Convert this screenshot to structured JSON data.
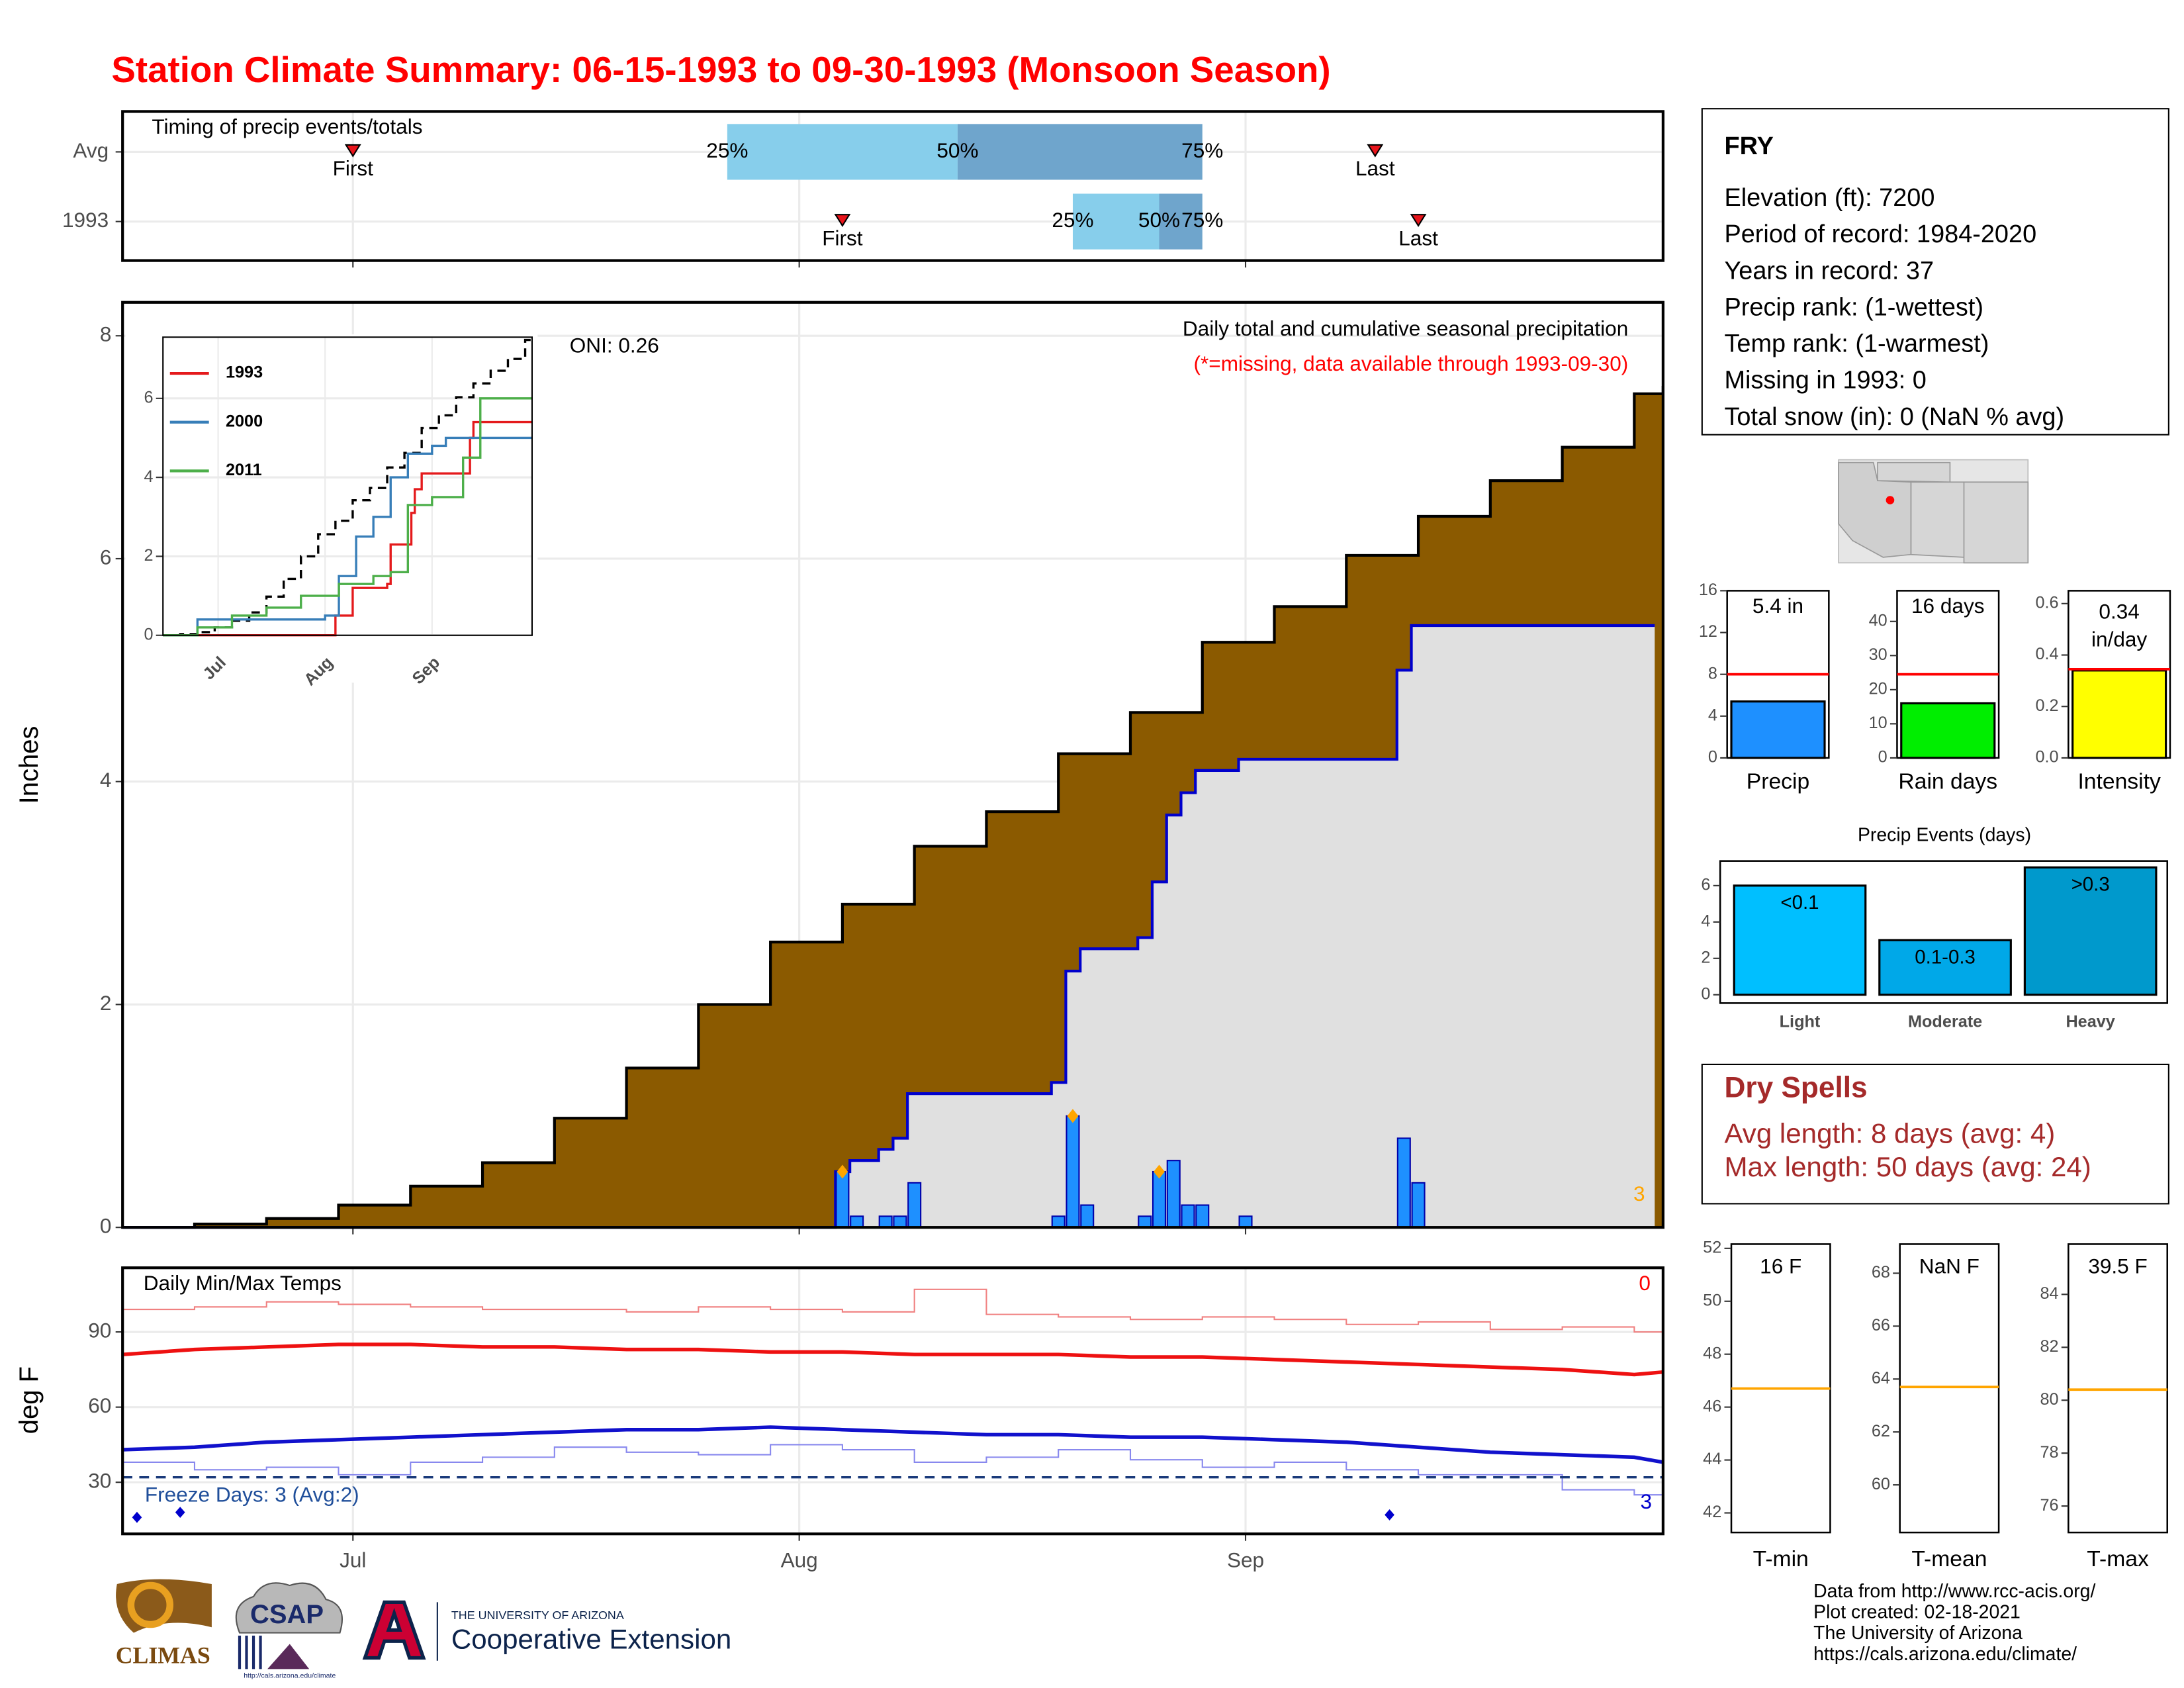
{
  "title": "Station Climate Summary: 06-15-1993 to 09-30-1993 (Monsoon Season)",
  "chart_data": [
    {
      "type": "timing",
      "title": "Timing of precip events/totals",
      "rows": [
        {
          "name": "Avg",
          "first": "1993-07-01",
          "p25": "1993-07-27",
          "p50": "1993-08-12",
          "p75": "1993-08-29",
          "last": "1993-09-10"
        },
        {
          "name": "1993",
          "first": "1993-08-04",
          "p25": "1993-08-20",
          "p50": "1993-08-26",
          "p75": "1993-08-29",
          "last": "1993-09-13"
        }
      ],
      "labels": {
        "first": "First",
        "last": "Last",
        "p25": "25%",
        "p50": "50%",
        "p75": "75%"
      },
      "colors": {
        "low": "#87ceeb",
        "high": "#6fa5cc",
        "marker": "#e8141b"
      }
    },
    {
      "type": "precip",
      "title": "Daily total and cumulative seasonal precipitation",
      "subtitle": "(*=missing, data available through 1993-09-30)",
      "annotation": "ONI: 0.26",
      "count_label": "3",
      "ylabel": "Inches",
      "ylim": [
        0,
        8.3
      ],
      "yticks": [
        0,
        2,
        4,
        6,
        8
      ],
      "average": {
        "color": "#8b5a00",
        "x": [
          "1993-06-15",
          "1993-06-20",
          "1993-06-25",
          "1993-06-30",
          "1993-07-05",
          "1993-07-10",
          "1993-07-15",
          "1993-07-20",
          "1993-07-25",
          "1993-07-30",
          "1993-08-04",
          "1993-08-09",
          "1993-08-14",
          "1993-08-19",
          "1993-08-24",
          "1993-08-29",
          "1993-09-03",
          "1993-09-08",
          "1993-09-13",
          "1993-09-18",
          "1993-09-23",
          "1993-09-28",
          "1993-09-30"
        ],
        "values": [
          0,
          0.03,
          0.08,
          0.2,
          0.37,
          0.58,
          0.98,
          1.43,
          2.0,
          2.56,
          2.9,
          3.42,
          3.73,
          4.25,
          4.62,
          5.25,
          5.57,
          6.03,
          6.38,
          6.7,
          7.0,
          7.48,
          7.55
        ]
      },
      "daily": {
        "color": "#1e90ff",
        "cumulative_color": "#0000cc",
        "highlight_color": "#ffa500",
        "x": [
          "1993-08-04",
          "1993-08-05",
          "1993-08-07",
          "1993-08-08",
          "1993-08-09",
          "1993-08-19",
          "1993-08-20",
          "1993-08-21",
          "1993-08-25",
          "1993-08-26",
          "1993-08-27",
          "1993-08-28",
          "1993-08-29",
          "1993-09-01",
          "1993-09-12",
          "1993-09-13"
        ],
        "values": [
          0.5,
          0.1,
          0.1,
          0.1,
          0.4,
          0.1,
          1.0,
          0.2,
          0.1,
          0.5,
          0.6,
          0.2,
          0.2,
          0.1,
          0.8,
          0.4
        ],
        "cumulative": [
          0.5,
          0.6,
          0.7,
          0.8,
          1.2,
          1.3,
          2.3,
          2.5,
          2.6,
          3.1,
          3.7,
          3.9,
          4.1,
          4.2,
          5.0,
          5.4
        ],
        "highlight": [
          0,
          6,
          9
        ]
      }
    },
    {
      "type": "inset",
      "ylim": [
        0,
        7.55
      ],
      "yticks": [
        0,
        2,
        4,
        6
      ],
      "xticks": [
        {
          "value": "1993-07-01",
          "label": "Jul"
        },
        {
          "value": "1993-08-01",
          "label": "Aug"
        },
        {
          "value": "1993-09-01",
          "label": "Sep"
        }
      ],
      "series": [
        {
          "name": "1993",
          "color": "#e41a1c",
          "x": [
            "1993-06-15",
            "1993-08-04",
            "1993-08-09",
            "1993-08-19",
            "1993-08-20",
            "1993-08-26",
            "1993-08-27",
            "1993-08-29",
            "1993-09-12",
            "1993-09-13",
            "1993-09-30"
          ],
          "values": [
            0,
            0.5,
            1.2,
            1.3,
            2.3,
            3.1,
            3.7,
            4.1,
            5.0,
            5.4,
            5.4
          ]
        },
        {
          "name": "2000",
          "color": "#377eb8",
          "x": [
            "1993-06-15",
            "1993-06-25",
            "1993-07-20",
            "1993-08-01",
            "1993-08-05",
            "1993-08-10",
            "1993-08-15",
            "1993-08-20",
            "1993-08-25",
            "1993-09-01",
            "1993-09-05",
            "1993-09-30"
          ],
          "values": [
            0,
            0.4,
            0.4,
            0.5,
            1.5,
            2.5,
            3.0,
            4.0,
            4.6,
            4.8,
            5.0,
            5.0
          ]
        },
        {
          "name": "2011",
          "color": "#4daf4a",
          "x": [
            "1993-06-15",
            "1993-06-25",
            "1993-07-05",
            "1993-07-15",
            "1993-07-25",
            "1993-08-05",
            "1993-08-15",
            "1993-08-20",
            "1993-08-25",
            "1993-09-01",
            "1993-09-10",
            "1993-09-15",
            "1993-09-30"
          ],
          "values": [
            0,
            0.2,
            0.5,
            0.7,
            1.0,
            1.3,
            1.5,
            1.6,
            3.3,
            3.5,
            4.5,
            6.0,
            6.0
          ]
        }
      ]
    },
    {
      "type": "temps",
      "title": "Daily Min/Max Temps",
      "ylabel": "deg F",
      "ylim": [
        9.4,
        115.6
      ],
      "yticks": [
        30,
        60,
        90
      ],
      "xlim": [
        "1993-06-15",
        "1993-09-30"
      ],
      "xticks": [
        {
          "value": "1993-07-01",
          "label": "Jul"
        },
        {
          "value": "1993-08-01",
          "label": "Aug"
        },
        {
          "value": "1993-09-01",
          "label": "Sep"
        }
      ],
      "x": [
        "1993-06-15",
        "1993-06-20",
        "1993-06-25",
        "1993-06-30",
        "1993-07-05",
        "1993-07-10",
        "1993-07-15",
        "1993-07-20",
        "1993-07-25",
        "1993-07-30",
        "1993-08-04",
        "1993-08-09",
        "1993-08-14",
        "1993-08-19",
        "1993-08-24",
        "1993-08-29",
        "1993-09-03",
        "1993-09-08",
        "1993-09-13",
        "1993-09-18",
        "1993-09-23",
        "1993-09-28",
        "1993-09-30"
      ],
      "max_daily": {
        "color": "#f08080",
        "values": [
          99,
          100,
          102,
          101,
          100,
          99,
          99,
          98,
          100,
          99,
          98,
          107,
          97,
          96,
          95,
          96,
          95,
          93,
          94,
          91,
          92,
          90,
          88
        ]
      },
      "max_avg": {
        "color": "#ee1111",
        "values": [
          81,
          83,
          84,
          85,
          85,
          84,
          84,
          83,
          83,
          82,
          82,
          81,
          81,
          81,
          80,
          80,
          79,
          78,
          77,
          76,
          75,
          73,
          74
        ]
      },
      "min_avg": {
        "color": "#1111cc",
        "values": [
          43,
          44,
          46,
          47,
          48,
          49,
          50,
          51,
          51,
          52,
          51,
          50,
          49,
          49,
          48,
          48,
          47,
          46,
          44,
          42,
          41,
          40,
          38
        ]
      },
      "min_daily": {
        "color": "#8888ee",
        "values": [
          38,
          35,
          36,
          33,
          38,
          40,
          44,
          42,
          41,
          45,
          43,
          38,
          40,
          43,
          39,
          36,
          38,
          35,
          33,
          33,
          27,
          25,
          27
        ]
      },
      "freeze_line": 32,
      "freeze_points": {
        "color": "#0000cc",
        "x": [
          "1993-06-16",
          "1993-06-19",
          "1993-09-11"
        ],
        "values": [
          16,
          18,
          17
        ]
      },
      "freeze_label": "Freeze Days: 3 (Avg:2)",
      "max_count": "0",
      "min_count": "3"
    },
    {
      "type": "gauge",
      "label": "Precip",
      "value": 5.4,
      "value_label": [
        "5.4 in"
      ],
      "reference": 8,
      "color": "#1e90ff",
      "ylim": [
        0,
        16
      ],
      "yticks": [
        0,
        4,
        8,
        12,
        16
      ]
    },
    {
      "type": "gauge",
      "label": "Rain days",
      "value": 16,
      "value_label": [
        "16 days"
      ],
      "reference": 24.5,
      "color": "#00ee00",
      "ylim": [
        0,
        49
      ],
      "yticks": [
        0,
        10,
        20,
        30,
        40
      ]
    },
    {
      "type": "gauge",
      "label": "Intensity",
      "value": 0.34,
      "value_label": [
        "0.34",
        "in/day"
      ],
      "reference": 0.345,
      "color": "#ffff00",
      "ylim": [
        0,
        0.65
      ],
      "yticks": [
        {
          "value": 0,
          "label": "0.0"
        },
        {
          "value": 0.2,
          "label": "0.2"
        },
        {
          "value": 0.4,
          "label": "0.4"
        },
        {
          "value": 0.6,
          "label": "0.6"
        }
      ]
    },
    {
      "type": "bar",
      "title": "Precip Events (days)",
      "categories": [
        "Light",
        "Moderate",
        "Heavy"
      ],
      "values": [
        6,
        3,
        7
      ],
      "value_labels": [
        "<0.1",
        "0.1-0.3",
        ">0.3"
      ],
      "colors": [
        "#00bfff",
        "#00a8e8",
        "#0099cc"
      ],
      "ylim": [
        0,
        7.2
      ],
      "yticks": [
        0,
        2,
        4,
        6
      ]
    },
    {
      "type": "tgauge",
      "label": "T-min",
      "value": 16,
      "value_label": "16 F",
      "reference": 46.7,
      "ylim": [
        41.26,
        52.16
      ],
      "yticks": [
        42,
        44,
        46,
        48,
        50,
        52
      ]
    },
    {
      "type": "tgauge",
      "label": "T-mean",
      "value": null,
      "value_label": "NaN F",
      "reference": 63.7,
      "ylim": [
        58.2,
        69.1
      ],
      "yticks": [
        60,
        62,
        64,
        66,
        68
      ]
    },
    {
      "type": "tgauge",
      "label": "T-max",
      "value": 39.5,
      "value_label": "39.5 F",
      "reference": 80.4,
      "ylim": [
        75,
        85.9
      ],
      "yticks": [
        76,
        78,
        80,
        82,
        84
      ]
    }
  ],
  "station": {
    "name": "FRY",
    "lines": [
      "Elevation (ft): 7200",
      "Period of record: 1984-2020",
      "Years in record: 37",
      "Precip rank:  (1-wettest)",
      "Temp rank:  (1-warmest)",
      "Missing in 1993: 0",
      "Total snow (in): 0 (NaN % avg)"
    ]
  },
  "dry_spells": {
    "title": "Dry Spells",
    "lines": [
      "Avg length: 8 days (avg: 4)",
      "Max length: 50 days (avg: 24)"
    ]
  },
  "credits": [
    "Data from http://www.rcc-acis.org/",
    "Plot created: 02-18-2021",
    "The University of Arizona",
    "https://cals.arizona.edu/climate/"
  ],
  "logos": {
    "climas": "CLIMAS",
    "csap": "CSAP",
    "csap_url": "http://cals.arizona.edu/climate",
    "ua": "THE UNIVERSITY OF ARIZONA",
    "coop": "Cooperative Extension"
  }
}
